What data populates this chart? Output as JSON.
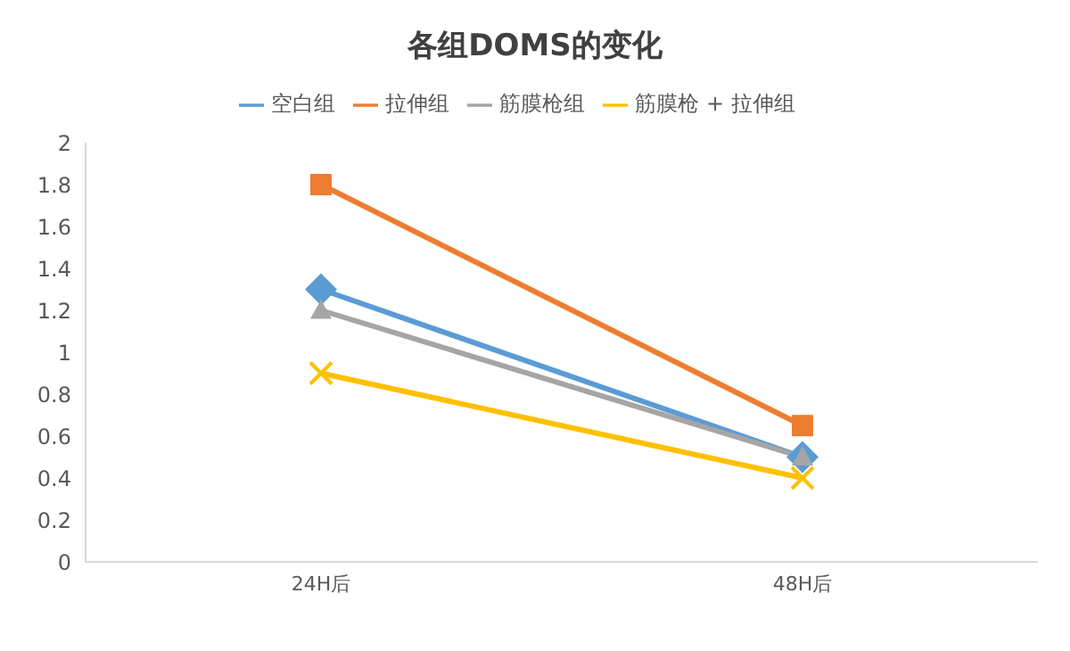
{
  "chart_data": {
    "type": "line",
    "title": "各组DOMS的变化",
    "categories": [
      "24H后",
      "48H后"
    ],
    "series": [
      {
        "name": "空白组",
        "color": "#5b9bd5",
        "values": [
          1.3,
          0.5
        ],
        "marker": "diamond"
      },
      {
        "name": "拉伸组",
        "color": "#ed7d31",
        "values": [
          1.8,
          0.65
        ],
        "marker": "square"
      },
      {
        "name": "筋膜枪组",
        "color": "#a5a5a5",
        "values": [
          1.2,
          0.5
        ],
        "marker": "triangle"
      },
      {
        "name": "筋膜枪 + 拉伸组",
        "color": "#ffc000",
        "values": [
          0.9,
          0.4
        ],
        "marker": "cross"
      }
    ],
    "ylim": [
      0,
      2
    ],
    "yticks": [
      0,
      0.2,
      0.4,
      0.6,
      0.8,
      1,
      1.2,
      1.4,
      1.6,
      1.8,
      2
    ],
    "grid": false,
    "legend": "top"
  }
}
